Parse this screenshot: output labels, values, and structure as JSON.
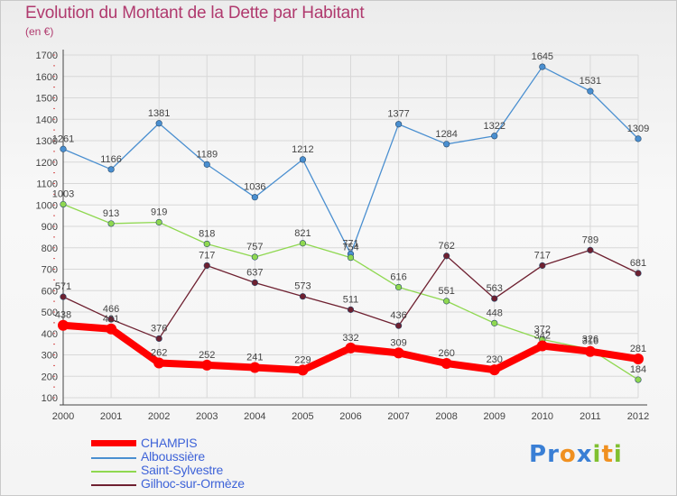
{
  "chart_data": {
    "type": "line",
    "title": "Evolution du Montant de la Dette par Habitant",
    "subtitle": "(en €)",
    "xlabel": "",
    "ylabel": "",
    "ylim": [
      100,
      1700
    ],
    "yticks": [
      100,
      200,
      300,
      400,
      500,
      600,
      700,
      800,
      900,
      1000,
      1100,
      1200,
      1300,
      1400,
      1500,
      1600,
      1700
    ],
    "x": [
      "2000",
      "2001",
      "2002",
      "2003",
      "2004",
      "2005",
      "2006",
      "2007",
      "2008",
      "2009",
      "2010",
      "2011",
      "2012"
    ],
    "series": [
      {
        "name": "Albous­sière",
        "color": "#4a8fd0",
        "values": [
          1261,
          1166,
          1381,
          1189,
          1036,
          1212,
          771,
          1377,
          1284,
          1322,
          1645,
          1531,
          1309
        ]
      },
      {
        "name": "Saint-Sylvestre",
        "color": "#8fd850",
        "values": [
          1003,
          913,
          919,
          818,
          757,
          821,
          754,
          616,
          551,
          448,
          372,
          326,
          184
        ]
      },
      {
        "name": "Gilhoc-sur-Ormèze",
        "color": "#6e2030",
        "values": [
          571,
          466,
          376,
          717,
          637,
          573,
          511,
          436,
          762,
          563,
          717,
          789,
          681
        ]
      },
      {
        "name": "CHAMPIS",
        "color": "#ff0000",
        "values": [
          438,
          421,
          262,
          252,
          241,
          229,
          332,
          309,
          260,
          230,
          342,
          316,
          281
        ]
      }
    ],
    "legend": [
      "CHAMPIS",
      "Alboussière",
      "Saint-Sylvestre",
      "Gilhoc-sur-Ormèze"
    ],
    "legend_position": "bottom-left"
  },
  "logo": {
    "text": "Proxiti"
  }
}
